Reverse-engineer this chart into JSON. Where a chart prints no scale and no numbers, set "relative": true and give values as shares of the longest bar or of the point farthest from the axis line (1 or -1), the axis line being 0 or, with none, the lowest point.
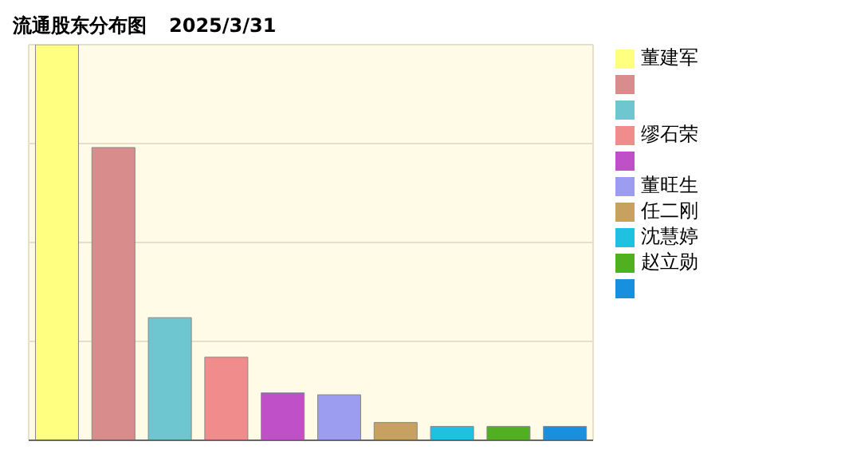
{
  "chart_data": {
    "type": "bar",
    "title": "流通股东分布图",
    "subtitle": "2025/3/31",
    "categories": [
      null,
      null,
      null,
      null,
      null,
      null,
      null,
      null,
      null,
      null
    ],
    "stacked": true,
    "series": [
      {
        "name": "董建军",
        "color": "#ffff80",
        "values": [
          1,
          null,
          null,
          null,
          null,
          null,
          null,
          null,
          null,
          null
        ]
      },
      {
        "color": "#d98c8c",
        "values": [
          null,
          0.74,
          null,
          null,
          null,
          null,
          null,
          null,
          null,
          null
        ]
      },
      {
        "color": "#6ec6d0",
        "values": [
          null,
          null,
          0.31,
          null,
          null,
          null,
          null,
          null,
          null,
          null
        ]
      },
      {
        "name": "缪石荣",
        "color": "#f08c8c",
        "values": [
          null,
          null,
          null,
          0.21,
          null,
          null,
          null,
          null,
          null,
          null
        ]
      },
      {
        "color": "#c050c8",
        "values": [
          null,
          null,
          null,
          null,
          0.12,
          null,
          null,
          null,
          null,
          null
        ]
      },
      {
        "name": "董旺生",
        "color": "#9c9cf0",
        "values": [
          null,
          null,
          null,
          null,
          null,
          0.115,
          null,
          null,
          null,
          null
        ]
      },
      {
        "name": "任二刚",
        "color": "#c8a060",
        "values": [
          null,
          null,
          null,
          null,
          null,
          null,
          0.045,
          null,
          null,
          null
        ]
      },
      {
        "name": "沈慧婷",
        "color": "#20c0e0",
        "values": [
          null,
          null,
          null,
          null,
          null,
          null,
          null,
          0.035,
          null,
          null
        ]
      },
      {
        "name": "赵立勋",
        "color": "#50b020",
        "values": [
          null,
          null,
          null,
          null,
          null,
          null,
          null,
          null,
          0.035,
          null
        ]
      },
      {
        "color": "#1890e0",
        "values": [
          null,
          null,
          null,
          null,
          null,
          null,
          null,
          null,
          null,
          0.035
        ]
      }
    ],
    "relative": true,
    "grid": true,
    "legend": "right"
  }
}
